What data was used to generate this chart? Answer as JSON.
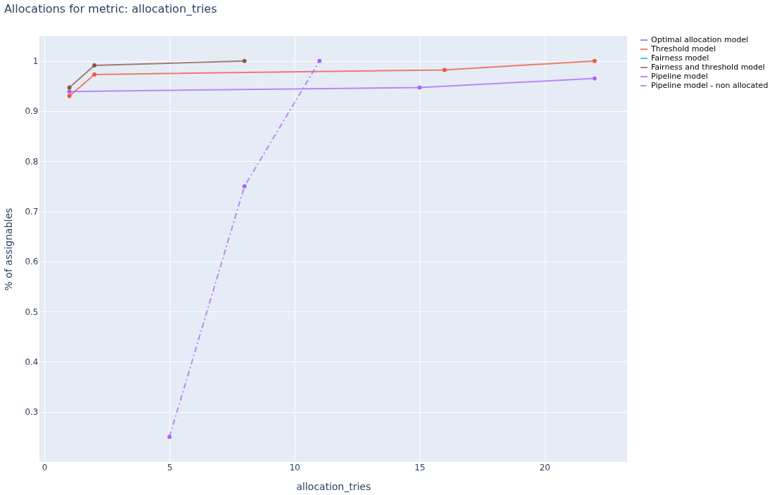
{
  "chart_data": {
    "type": "line",
    "title": "Allocations for metric: allocation_tries",
    "xlabel": "allocation_tries",
    "ylabel": "% of assignables",
    "xlim": [
      -0.2,
      23.3
    ],
    "xticks": [
      0,
      5,
      10,
      15,
      20
    ],
    "ylim": [
      0.2,
      1.05
    ],
    "yticks": [
      0.3,
      0.4,
      0.5,
      0.6,
      0.7,
      0.8,
      0.9,
      1
    ],
    "grid": true,
    "legend": "right",
    "marker": "circle",
    "series": [
      {
        "name": "Optimal allocation model",
        "color": "#636efa",
        "line_style": "solid"
      },
      {
        "name": "Threshold model",
        "color": "#ef553b",
        "x": [
          1,
          2,
          16,
          22
        ],
        "values": [
          0.93,
          0.973,
          0.982,
          1.0
        ],
        "line_style": "solid"
      },
      {
        "name": "Fairness model",
        "color": "#00cc96",
        "line_style": "solid"
      },
      {
        "name": "Fairness and threshold model",
        "color": "#8c564b",
        "x": [
          1,
          2,
          8
        ],
        "values": [
          0.947,
          0.991,
          1.0
        ],
        "line_style": "solid"
      },
      {
        "name": "Pipeline model",
        "color": "#ab63fa",
        "x": [
          1,
          15,
          22
        ],
        "values": [
          0.939,
          0.947,
          0.965
        ],
        "line_style": "solid"
      },
      {
        "name": "Pipeline model - non allocated",
        "color": "#ab63fa",
        "x": [
          5,
          8,
          11
        ],
        "values": [
          0.25,
          0.75,
          1.0
        ],
        "line_style": "dashdot"
      }
    ]
  }
}
